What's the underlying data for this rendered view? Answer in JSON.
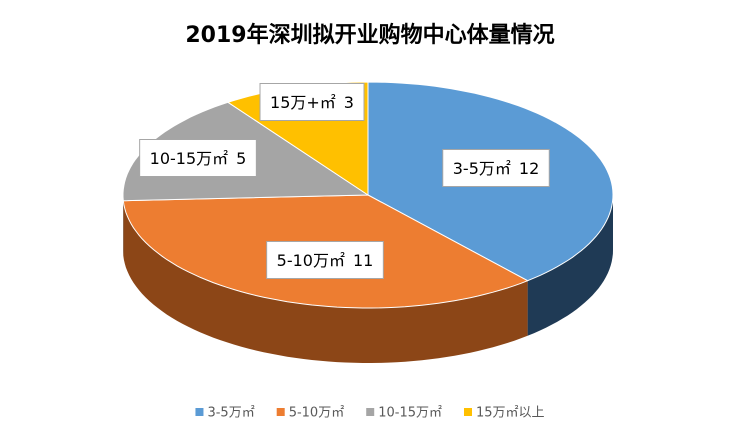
{
  "chart_data": {
    "type": "pie3d",
    "title": "2019年深圳拟开业购物中心体量情况",
    "categories": [
      "3-5万㎡",
      "5-10万㎡",
      "10-15万㎡",
      "15万㎡以上"
    ],
    "label_names": [
      "3-5万㎡",
      "5-10万㎡",
      "10-15万㎡",
      "15万+㎡"
    ],
    "values": [
      12,
      11,
      5,
      3
    ],
    "colors": [
      "#5b9bd5",
      "#ed7d31",
      "#a5a5a5",
      "#ffc000"
    ],
    "side_colors": [
      "#1f3a55",
      "#8c4617",
      "#6b6b6b",
      "#a27a00"
    ],
    "legend": "bottom"
  }
}
